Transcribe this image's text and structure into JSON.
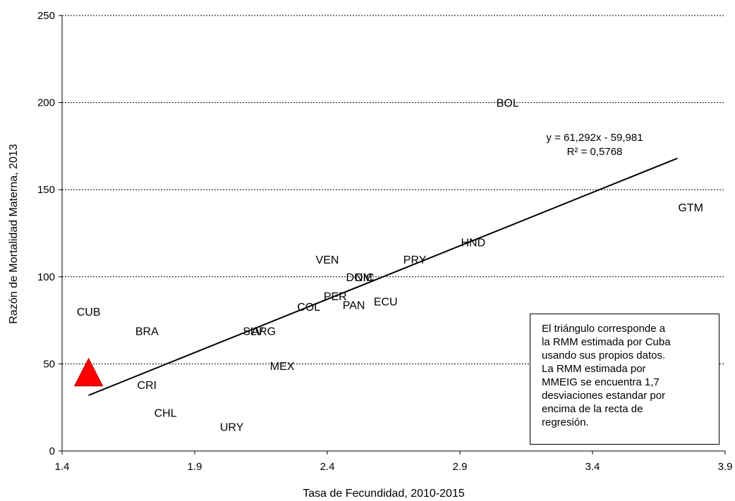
{
  "chart_data": {
    "type": "scatter",
    "xlabel": "Tasa de Fecundidad, 2010-2015",
    "ylabel": "Razón de Mortalidad Materna, 2013",
    "xlim": [
      1.4,
      3.9
    ],
    "ylim": [
      0,
      250
    ],
    "xticks": [
      "1.4",
      "1.9",
      "2.4",
      "2.9",
      "3.4",
      "3.9"
    ],
    "yticks": [
      "0",
      "50",
      "100",
      "150",
      "200",
      "250"
    ],
    "grid": "horizontal dotted",
    "points": [
      {
        "label": "BOL",
        "x": 3.08,
        "y": 200
      },
      {
        "label": "GTM",
        "x": 3.77,
        "y": 140
      },
      {
        "label": "HND",
        "x": 2.95,
        "y": 120
      },
      {
        "label": "PRY",
        "x": 2.73,
        "y": 110
      },
      {
        "label": "VEN",
        "x": 2.4,
        "y": 110
      },
      {
        "label": "DOM",
        "x": 2.52,
        "y": 100
      },
      {
        "label": "NIC",
        "x": 2.54,
        "y": 100
      },
      {
        "label": "ECU",
        "x": 2.62,
        "y": 86
      },
      {
        "label": "PER",
        "x": 2.43,
        "y": 89
      },
      {
        "label": "PAN",
        "x": 2.5,
        "y": 84
      },
      {
        "label": "COL",
        "x": 2.33,
        "y": 83
      },
      {
        "label": "SLV",
        "x": 2.12,
        "y": 69
      },
      {
        "label": "ARG",
        "x": 2.16,
        "y": 69
      },
      {
        "label": "BRA",
        "x": 1.72,
        "y": 69
      },
      {
        "label": "CUB",
        "x": 1.5,
        "y": 80
      },
      {
        "label": "MEX",
        "x": 2.23,
        "y": 49
      },
      {
        "label": "CRI",
        "x": 1.72,
        "y": 38
      },
      {
        "label": "CHL",
        "x": 1.79,
        "y": 22
      },
      {
        "label": "URY",
        "x": 2.04,
        "y": 14
      }
    ],
    "trendline": {
      "slope": 61.292,
      "intercept": -59.981,
      "x_range": [
        1.5,
        3.72
      ]
    },
    "equation": "y = 61,292x - 59,981",
    "r_squared": "R² = 0,5768",
    "highlight": {
      "shape": "triangle",
      "color": "#ff0000",
      "x": 1.5,
      "y": 43
    }
  },
  "annotation": {
    "lines": [
      "El triángulo corresponde a",
      "la RMM estimada por Cuba",
      "usando sus propios datos.",
      "La RMM estimada por",
      "MMEIG se encuentra 1,7",
      "desviaciones estandar por",
      "encima de la recta de",
      "regresión."
    ]
  }
}
